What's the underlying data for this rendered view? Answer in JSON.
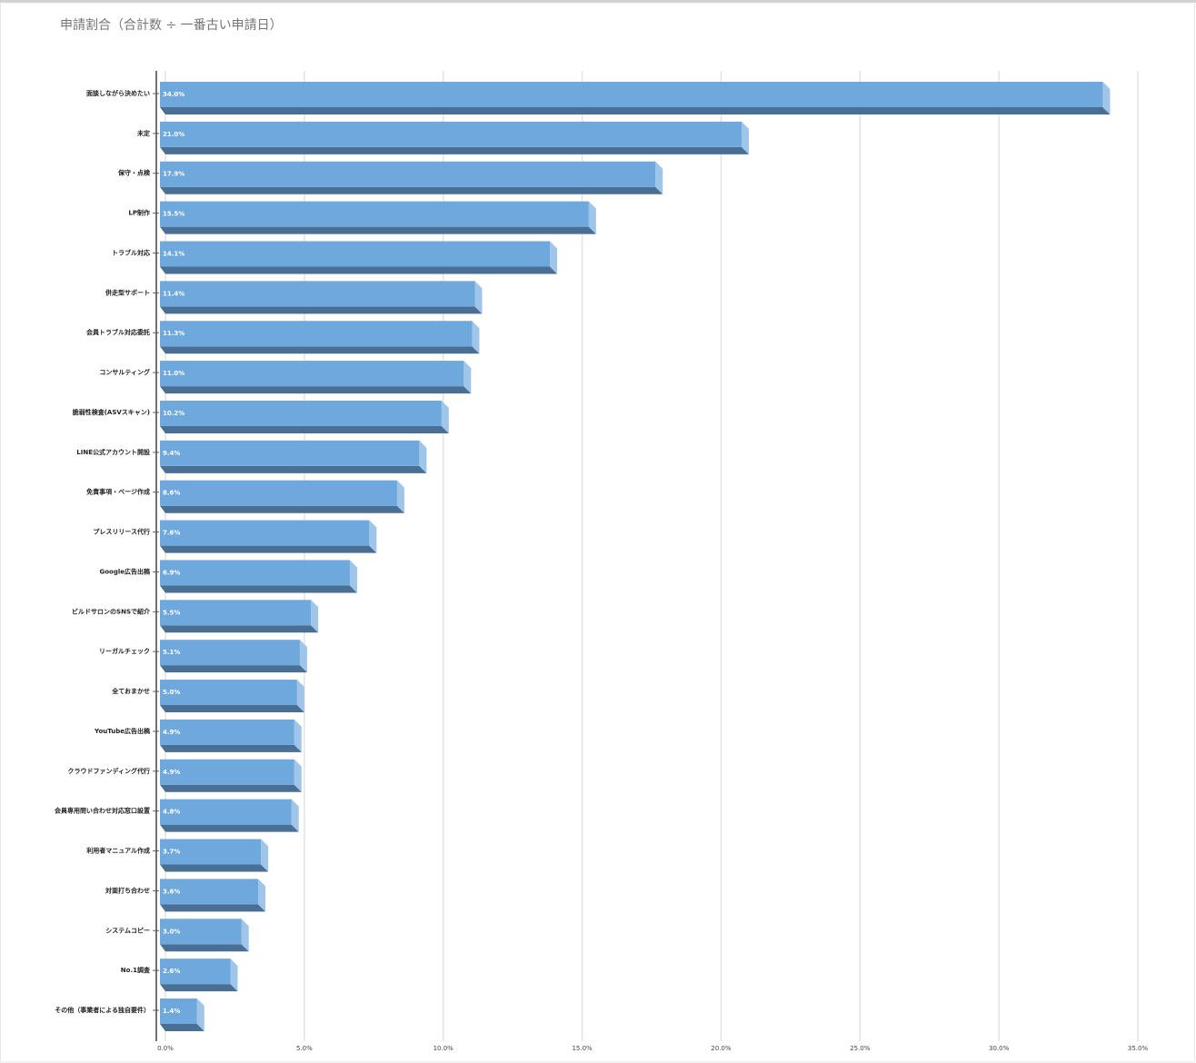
{
  "chart_data": {
    "type": "bar3d-horizontal",
    "title": "申請割合（合計数 ÷ 一番古い申請日）",
    "categories": [
      "面談しながら決めたい",
      "未定",
      "保守・点検",
      "LP制作",
      "トラブル対応",
      "併走型サポート",
      "会員トラブル対応委託",
      "コンサルティング",
      "脆弱性検査(ASVスキャン)",
      "LINE公式アカウント開設",
      "免責事項・ページ作成",
      "プレスリリース代行",
      "Google広告出稿",
      "ビルドサロンのSNSで紹介",
      "リーガルチェック",
      "全ておまかせ",
      "YouTube広告出稿",
      "クラウドファンディング代行",
      "会員専用問い合わせ対応窓口設置",
      "利用者マニュアル作成",
      "対面打ち合わせ",
      "システムコピー",
      "No.1調査",
      "その他（事業者による独自要件）"
    ],
    "values": [
      34.0,
      21.0,
      17.9,
      15.5,
      14.1,
      11.4,
      11.3,
      11.0,
      10.2,
      9.4,
      8.6,
      7.6,
      6.9,
      5.5,
      5.1,
      5.0,
      4.9,
      4.9,
      4.8,
      3.7,
      3.6,
      3.0,
      2.6,
      1.4
    ],
    "value_labels": [
      "34.0%",
      "21.0%",
      "17.9%",
      "15.5%",
      "14.1%",
      "11.4%",
      "11.3%",
      "11.0%",
      "10.2%",
      "9.4%",
      "8.6%",
      "7.6%",
      "6.9%",
      "5.5%",
      "5.1%",
      "5.0%",
      "4.9%",
      "4.9%",
      "4.8%",
      "3.7%",
      "3.6%",
      "3.0%",
      "2.6%",
      "1.4%"
    ],
    "color": "#6fa8dc",
    "xlim": [
      0,
      35
    ],
    "xticks": [
      {
        "value": 0,
        "label": "0.0%"
      },
      {
        "value": 5,
        "label": "5.0%"
      },
      {
        "value": 10,
        "label": "10.0%"
      },
      {
        "value": 15,
        "label": "15.0%"
      },
      {
        "value": 20,
        "label": "20.0%"
      },
      {
        "value": 25,
        "label": "25.0%"
      },
      {
        "value": 30,
        "label": "30.0%"
      },
      {
        "value": 35,
        "label": "35.0%"
      }
    ],
    "grid": true
  }
}
